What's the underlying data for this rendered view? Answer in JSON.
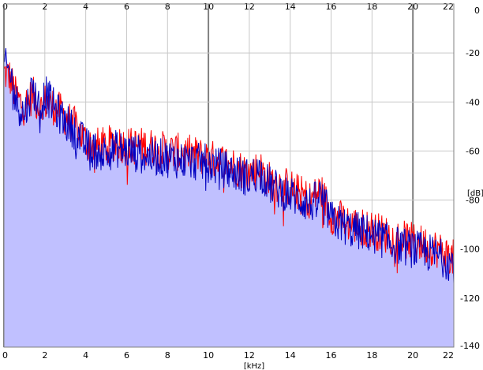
{
  "chart_data": {
    "type": "area",
    "xlabel": "[kHz]",
    "ylabel": "[dB]",
    "xlim": [
      0,
      22
    ],
    "ylim": [
      -140,
      0
    ],
    "x_ticks": [
      0,
      2,
      4,
      6,
      8,
      10,
      12,
      14,
      16,
      18,
      20,
      22
    ],
    "x_tick_labels": [
      "0",
      "2",
      "4",
      "6",
      "8",
      "10",
      "12",
      "14",
      "16",
      "18",
      "20",
      "22"
    ],
    "y_ticks": [
      0,
      -20,
      -40,
      -60,
      -80,
      -100,
      -120,
      -140
    ],
    "y_tick_labels": [
      "0",
      "-20",
      "-40",
      "-60",
      "-80",
      "-100",
      "-120",
      "-140"
    ],
    "grid": true,
    "x_ticks_top": true,
    "y_axis_side": "right",
    "colors": {
      "background": "#ffffff",
      "fill": "#c0c0ff",
      "channel_red": "#ff0000",
      "channel_blue": "#0000c0",
      "grid_minor": "#c8c8c8",
      "grid_major": "#808080"
    },
    "series": [
      {
        "color": "#ff0000",
        "x": [
          0,
          0.3,
          0.6,
          1.0,
          1.4,
          1.8,
          2.0,
          2.5,
          3.0,
          3.5,
          4.0,
          4.5,
          5.0,
          5.5,
          6.0,
          7.0,
          8.0,
          9.0,
          10.0,
          11.0,
          12.0,
          12.5,
          13.0,
          14.0,
          15.0,
          15.5,
          16.0,
          17.0,
          18.0,
          19.0,
          20.0,
          21.0,
          22.0
        ],
        "y": [
          -28,
          -30,
          -38,
          -42,
          -37,
          -43,
          -40,
          -42,
          -46,
          -50,
          -56,
          -58,
          -58,
          -56,
          -58,
          -58,
          -60,
          -61,
          -63,
          -65,
          -69,
          -67,
          -72,
          -75,
          -80,
          -76,
          -86,
          -90,
          -92,
          -95,
          -97,
          -99,
          -104
        ]
      },
      {
        "color": "#0000c0",
        "x": [
          0,
          0.3,
          0.6,
          1.0,
          1.4,
          1.8,
          2.0,
          2.5,
          3.0,
          3.5,
          4.0,
          4.5,
          5.0,
          5.5,
          6.0,
          7.0,
          8.0,
          9.0,
          10.0,
          11.0,
          12.0,
          12.5,
          13.0,
          14.0,
          15.0,
          15.5,
          16.0,
          17.0,
          18.0,
          19.0,
          20.0,
          21.0,
          22.0
        ],
        "y": [
          -25,
          -28,
          -40,
          -45,
          -34,
          -44,
          -36,
          -43,
          -48,
          -52,
          -58,
          -60,
          -61,
          -59,
          -60,
          -62,
          -63,
          -64,
          -65,
          -68,
          -71,
          -68,
          -74,
          -78,
          -82,
          -78,
          -88,
          -92,
          -94,
          -98,
          -100,
          -102,
          -106
        ]
      }
    ]
  }
}
